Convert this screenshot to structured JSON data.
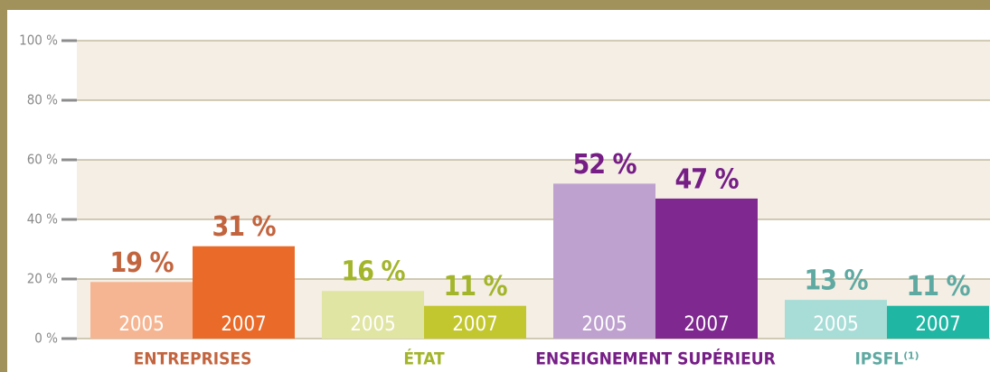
{
  "chart_data": {
    "type": "bar",
    "categories": [
      "ENTREPRISES",
      "ÉTAT",
      "ENSEIGNEMENT SUPÉRIEUR",
      "IPSFL⁽¹⁾"
    ],
    "category_colors": [
      "#c2653f",
      "#a3b52b",
      "#761d86",
      "#5ea9a1"
    ],
    "series": [
      {
        "name": "2005",
        "colors": [
          "#f6b592",
          "#e1e5a3",
          "#bea1cf",
          "#a8ddd7"
        ],
        "values": [
          19,
          16,
          52,
          13
        ],
        "value_labels": [
          "19 %",
          "16 %",
          "52 %",
          "13 %"
        ]
      },
      {
        "name": "2007",
        "colors": [
          "#ea6b29",
          "#c3c72f",
          "#7e2890",
          "#20b6a4"
        ],
        "values": [
          31,
          11,
          47,
          11
        ],
        "value_labels": [
          "31 %",
          "11 %",
          "47 %",
          "11 %"
        ]
      }
    ],
    "ylim": [
      0,
      100
    ],
    "yticks": [
      {
        "value": 0,
        "label": "0 %"
      },
      {
        "value": 20,
        "label": "20 %"
      },
      {
        "value": 40,
        "label": "40 %"
      },
      {
        "value": 60,
        "label": "60 %"
      },
      {
        "value": 80,
        "label": "80 %"
      },
      {
        "value": 100,
        "label": "100 %"
      }
    ],
    "grid": true
  }
}
